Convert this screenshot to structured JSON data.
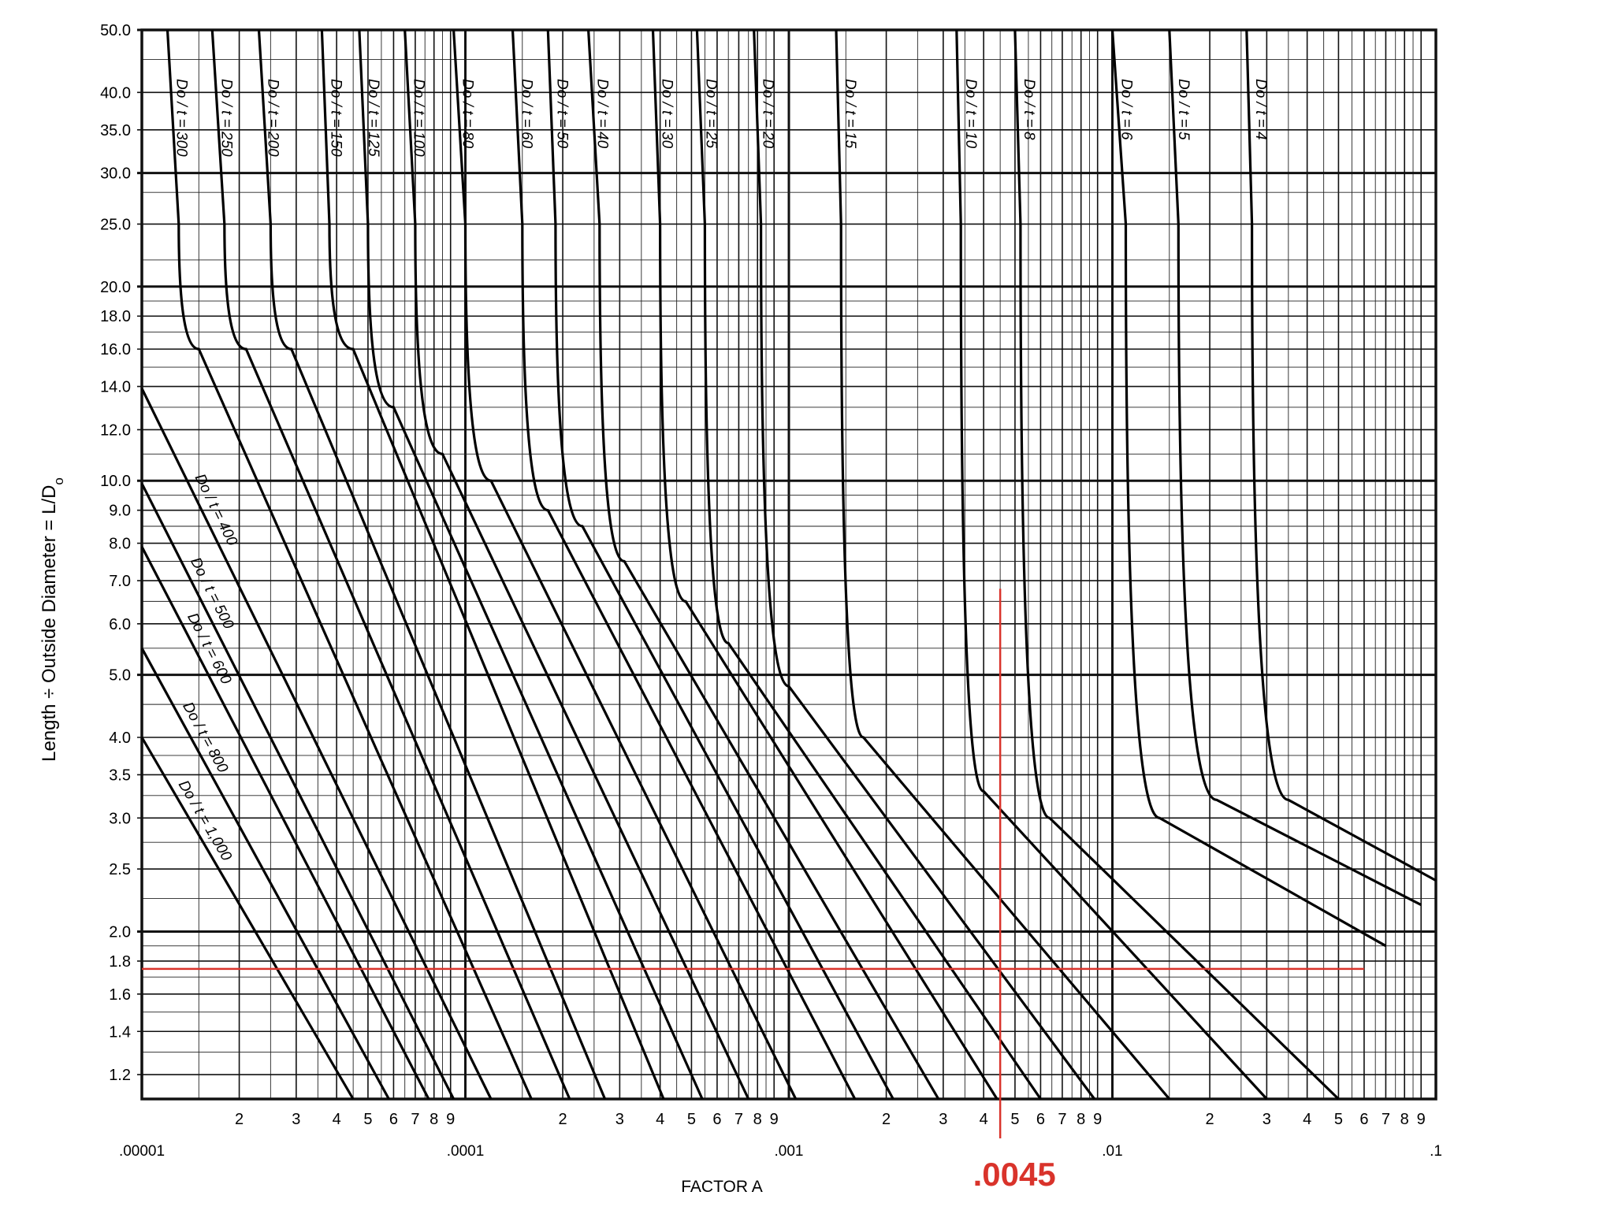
{
  "chart_data": {
    "type": "line",
    "title": "",
    "xlabel": "FACTOR A",
    "ylabel": "Length ÷ Outside Diameter = L/D",
    "ylabel_sub": "o",
    "x_scale": "log",
    "y_scale": "log",
    "xlim": [
      1e-05,
      0.1
    ],
    "ylim": [
      1.1,
      50
    ],
    "grid": true,
    "x_decade_labels": [
      {
        "x": 1e-05,
        "label": ".00001"
      },
      {
        "x": 0.0001,
        "label": ".0001"
      },
      {
        "x": 0.001,
        "label": ".001"
      },
      {
        "x": 0.01,
        "label": ".01"
      },
      {
        "x": 0.1,
        "label": ".1"
      }
    ],
    "x_minor_labels": [
      "2",
      "3",
      "4",
      "5",
      "6",
      "7",
      "8",
      "9"
    ],
    "y_ticks": [
      {
        "y": 50.0,
        "label": "50.0"
      },
      {
        "y": 40.0,
        "label": "40.0"
      },
      {
        "y": 35.0,
        "label": "35.0"
      },
      {
        "y": 30.0,
        "label": "30.0"
      },
      {
        "y": 25.0,
        "label": "25.0"
      },
      {
        "y": 20.0,
        "label": "20.0"
      },
      {
        "y": 18.0,
        "label": "18.0"
      },
      {
        "y": 16.0,
        "label": "16.0"
      },
      {
        "y": 14.0,
        "label": "14.0"
      },
      {
        "y": 12.0,
        "label": "12.0"
      },
      {
        "y": 10.0,
        "label": "10.0"
      },
      {
        "y": 9.0,
        "label": "9.0"
      },
      {
        "y": 8.0,
        "label": "8.0"
      },
      {
        "y": 7.0,
        "label": "7.0"
      },
      {
        "y": 6.0,
        "label": "6.0"
      },
      {
        "y": 5.0,
        "label": "5.0"
      },
      {
        "y": 4.0,
        "label": "4.0"
      },
      {
        "y": 3.5,
        "label": "3.5"
      },
      {
        "y": 3.0,
        "label": "3.0"
      },
      {
        "y": 2.5,
        "label": "2.5"
      },
      {
        "y": 2.0,
        "label": "2.0"
      },
      {
        "y": 1.8,
        "label": "1.8"
      },
      {
        "y": 1.6,
        "label": "1.6"
      },
      {
        "y": 1.4,
        "label": "1.4"
      },
      {
        "y": 1.2,
        "label": "1.2"
      }
    ],
    "series": [
      {
        "label": "Do / t = 1,000",
        "points": [
          [
            1e-05,
            4.0
          ],
          [
            4.5e-05,
            1.1
          ]
        ]
      },
      {
        "label": "Do / t = 800",
        "points": [
          [
            1e-05,
            5.5
          ],
          [
            5.8e-05,
            1.1
          ]
        ]
      },
      {
        "label": "Do / t = 600",
        "points": [
          [
            1e-05,
            7.9
          ],
          [
            7.7e-05,
            1.1
          ]
        ]
      },
      {
        "label": "Do / t = 500",
        "points": [
          [
            1e-05,
            9.9
          ],
          [
            9.2e-05,
            1.1
          ]
        ]
      },
      {
        "label": "Do / t = 400",
        "points": [
          [
            1e-05,
            13.9
          ],
          [
            0.00012,
            1.1
          ]
        ]
      },
      {
        "label": "Do / t = 300",
        "points": [
          [
            1.2e-05,
            50
          ],
          [
            1.3e-05,
            25
          ],
          [
            1.5e-05,
            16
          ],
          [
            0.00016,
            1.1
          ]
        ]
      },
      {
        "label": "Do / t = 250",
        "points": [
          [
            1.65e-05,
            50
          ],
          [
            1.8e-05,
            25
          ],
          [
            2.1e-05,
            16
          ],
          [
            0.00021,
            1.1
          ]
        ]
      },
      {
        "label": "Do / t = 200",
        "points": [
          [
            2.3e-05,
            50
          ],
          [
            2.5e-05,
            25
          ],
          [
            2.9e-05,
            16
          ],
          [
            0.00027,
            1.1
          ]
        ]
      },
      {
        "label": "Do / t = 150",
        "points": [
          [
            3.6e-05,
            50
          ],
          [
            3.8e-05,
            25
          ],
          [
            4.5e-05,
            16
          ],
          [
            0.00041,
            1.1
          ]
        ]
      },
      {
        "label": "Do / t = 125",
        "points": [
          [
            4.7e-05,
            50
          ],
          [
            5e-05,
            25
          ],
          [
            6e-05,
            13
          ],
          [
            0.00054,
            1.1
          ]
        ]
      },
      {
        "label": "Do / t = 100",
        "points": [
          [
            6.5e-05,
            50
          ],
          [
            7e-05,
            25
          ],
          [
            8.5e-05,
            11
          ],
          [
            0.00075,
            1.1
          ]
        ]
      },
      {
        "label": "Do / t = 80",
        "points": [
          [
            9.2e-05,
            50
          ],
          [
            0.0001,
            25
          ],
          [
            0.00012,
            10
          ],
          [
            0.00105,
            1.1
          ]
        ]
      },
      {
        "label": "Do / t = 60",
        "points": [
          [
            0.00014,
            50
          ],
          [
            0.00015,
            25
          ],
          [
            0.00018,
            9
          ],
          [
            0.0016,
            1.1
          ]
        ]
      },
      {
        "label": "Do / t = 50",
        "points": [
          [
            0.00018,
            50
          ],
          [
            0.00019,
            25
          ],
          [
            0.00023,
            8.5
          ],
          [
            0.0021,
            1.1
          ]
        ]
      },
      {
        "label": "Do / t = 40",
        "points": [
          [
            0.00024,
            50
          ],
          [
            0.00026,
            25
          ],
          [
            0.00031,
            7.5
          ],
          [
            0.0029,
            1.1
          ]
        ]
      },
      {
        "label": "Do / t = 30",
        "points": [
          [
            0.00038,
            50
          ],
          [
            0.0004,
            25
          ],
          [
            0.00048,
            6.5
          ],
          [
            0.0044,
            1.1
          ]
        ]
      },
      {
        "label": "Do / t = 25",
        "points": [
          [
            0.00052,
            50
          ],
          [
            0.00055,
            25
          ],
          [
            0.00065,
            5.6
          ],
          [
            0.006,
            1.1
          ]
        ]
      },
      {
        "label": "Do / t = 20",
        "points": [
          [
            0.00078,
            50
          ],
          [
            0.00082,
            25
          ],
          [
            0.001,
            4.8
          ],
          [
            0.0088,
            1.1
          ]
        ]
      },
      {
        "label": "Do / t = 15",
        "points": [
          [
            0.0014,
            50
          ],
          [
            0.00145,
            25
          ],
          [
            0.0017,
            4.0
          ],
          [
            0.015,
            1.1
          ]
        ]
      },
      {
        "label": "Do / t = 10",
        "points": [
          [
            0.0033,
            50
          ],
          [
            0.0034,
            25
          ],
          [
            0.004,
            3.3
          ],
          [
            0.03,
            1.1
          ]
        ]
      },
      {
        "label": "Do / t = 8",
        "points": [
          [
            0.005,
            50
          ],
          [
            0.0052,
            25
          ],
          [
            0.0064,
            3.0
          ],
          [
            0.05,
            1.1
          ]
        ]
      },
      {
        "label": "Do / t = 6",
        "points": [
          [
            0.01,
            50
          ],
          [
            0.011,
            25
          ],
          [
            0.014,
            3.0
          ],
          [
            0.07,
            1.9
          ]
        ]
      },
      {
        "label": "Do / t = 5",
        "points": [
          [
            0.015,
            50
          ],
          [
            0.016,
            25
          ],
          [
            0.021,
            3.2
          ],
          [
            0.09,
            2.2
          ]
        ]
      },
      {
        "label": "Do / t = 4",
        "points": [
          [
            0.026,
            50
          ],
          [
            0.027,
            25
          ],
          [
            0.035,
            3.2
          ],
          [
            0.1,
            2.4
          ]
        ]
      }
    ],
    "annotations": {
      "highlight_x": 0.0045,
      "highlight_x_label": ".0045",
      "highlight_y": 1.75,
      "highlight_color": "#d9332b"
    }
  }
}
